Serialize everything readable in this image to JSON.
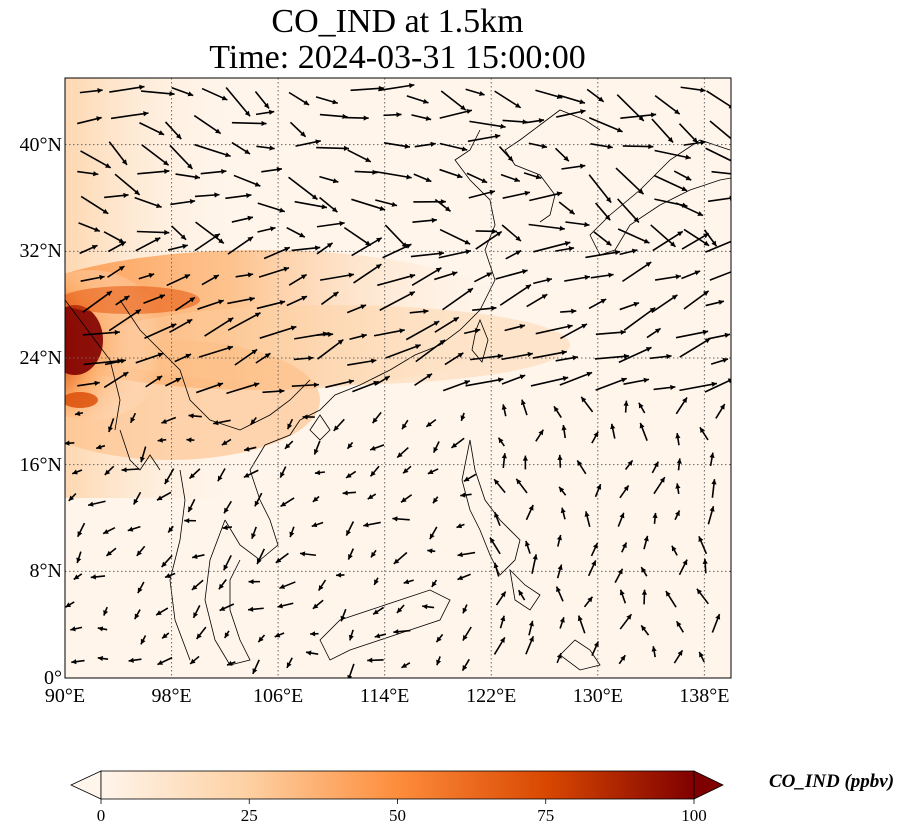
{
  "title_line1": "CO_IND at 1.5km",
  "title_line2": "Time: 2024-03-31 15:00:00",
  "map": {
    "lon_range": [
      90,
      140
    ],
    "lat_range": [
      0,
      45
    ],
    "x_ticks": [
      "90°E",
      "98°E",
      "106°E",
      "114°E",
      "122°E",
      "130°E",
      "138°E"
    ],
    "y_ticks": [
      "0°",
      "8°N",
      "16°N",
      "24°N",
      "32°N",
      "40°N"
    ],
    "gridlines": "dotted",
    "variable": "CO_IND",
    "vectors": "wind"
  },
  "colorbar": {
    "label": "CO_IND (ppbv)",
    "ticks": [
      "0",
      "25",
      "50",
      "75",
      "100"
    ],
    "min": 0,
    "max": 100,
    "colormap": [
      "#fff5eb",
      "#fdd0a2",
      "#fd8d3c",
      "#d94801",
      "#7f0000"
    ],
    "extend": "both"
  }
}
